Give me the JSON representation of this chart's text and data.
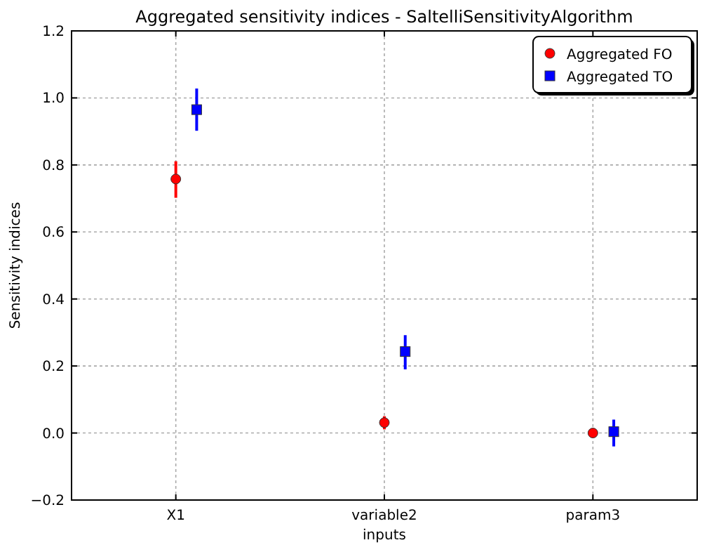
{
  "chart_data": {
    "type": "scatter",
    "title": "Aggregated sensitivity indices - SaltelliSensitivityAlgorithm",
    "xlabel": "inputs",
    "ylabel": "Sensitivity indices",
    "categories": [
      "X1",
      "variable2",
      "param3"
    ],
    "ylim": [
      -0.2,
      1.2
    ],
    "yticks": [
      {
        "value": -0.2,
        "label": "−0.2"
      },
      {
        "value": 0,
        "label": "0.0"
      },
      {
        "value": 0.2,
        "label": "0.2"
      },
      {
        "value": 0.4,
        "label": "0.4"
      },
      {
        "value": 0.6,
        "label": "0.6"
      },
      {
        "value": 0.8,
        "label": "0.8"
      },
      {
        "value": 1,
        "label": "1.0"
      },
      {
        "value": 1.2,
        "label": "1.2"
      }
    ],
    "grid": true,
    "legend": "top right",
    "series": [
      {
        "name": "Aggregated FO",
        "color": "#ff0000",
        "marker": "circle",
        "values": [
          0.758,
          0.031,
          0.0
        ],
        "errors": [
          [
            0.702,
            0.811
          ],
          [
            0.011,
            0.05
          ],
          null
        ]
      },
      {
        "name": "Aggregated TO",
        "color": "#0000ff",
        "marker": "square",
        "values": [
          0.965,
          0.243,
          0.004
        ],
        "errors": [
          [
            0.902,
            1.028
          ],
          [
            0.19,
            0.292
          ],
          [
            -0.04,
            0.04
          ]
        ]
      }
    ]
  }
}
